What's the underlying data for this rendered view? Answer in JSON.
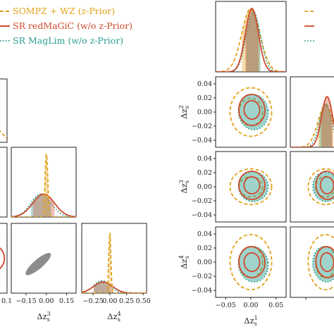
{
  "legend": {
    "entries": [
      {
        "label": "SOMPZ + WZ (z-Prior)",
        "color": "#e2a21a",
        "style": "dashed"
      },
      {
        "label": "SR redMaGiC (w/o z-Prior)",
        "color": "#cf4a2c",
        "style": "solid"
      },
      {
        "label": "SR MagLim (w/o z-Prior)",
        "color": "#2a9d8f",
        "style": "dotted"
      }
    ]
  },
  "chart_data": [
    {
      "type": "corner",
      "panel": "left",
      "parameters": [
        "Δz_s^3",
        "Δz_s^4"
      ],
      "axis_labels": {
        "x": [
          "Δz_s^3",
          "Δz_s^4"
        ]
      },
      "x_ticks": {
        "Δz_s^3": [
          "−0.15",
          "0.00",
          "0.15"
        ],
        "Δz_s^4": [
          "−0.25",
          "0.00",
          "0.25",
          "0.50"
        ]
      },
      "edge_tick_partial": [
        "0.1"
      ],
      "ranges": {
        "Δz_s^3": [
          -0.26,
          0.22
        ],
        "Δz_s^4": [
          -0.42,
          0.55
        ]
      },
      "series": [
        {
          "name": "SOMPZ + WZ (z-Prior)",
          "color": "#e2a21a",
          "mean": {
            "Δz_s^3": 0.0,
            "Δz_s^4": 0.0
          },
          "sigma": {
            "Δz_s^3": 0.01,
            "Δz_s^4": 0.015
          }
        },
        {
          "name": "SR redMaGiC (w/o z-Prior)",
          "color": "#cf4a2c",
          "mean": {
            "Δz_s^3": -0.02,
            "Δz_s^4": -0.1
          },
          "sigma": {
            "Δz_s^3": 0.08,
            "Δz_s^4": 0.14
          }
        },
        {
          "name": "SR MagLim (w/o z-Prior)",
          "color": "#2a9d8f",
          "mean": {
            "Δz_s^3": -0.04,
            "Δz_s^4": -0.12
          },
          "sigma": {
            "Δz_s^3": 0.075,
            "Δz_s^4": 0.12
          }
        }
      ]
    },
    {
      "type": "corner",
      "panel": "right",
      "parameters": [
        "Δz_s^1",
        "Δz_s^2",
        "Δz_s^3",
        "Δz_s^4"
      ],
      "axis_labels": {
        "x": [
          "Δz_s^1"
        ],
        "y": [
          "Δz_s^2",
          "Δz_s^3",
          "Δz_s^4"
        ]
      },
      "x_ticks": {
        "Δz_s^1": [
          "−0.05",
          "0.00",
          "0.05"
        ]
      },
      "y_ticks": [
        "0.04",
        "0.02",
        "0.00",
        "−0.02",
        "−0.04"
      ],
      "ranges": {
        "Δz_s^1": [
          -0.07,
          0.07
        ],
        "y": [
          -0.05,
          0.05
        ]
      },
      "series": [
        {
          "name": "SOMPZ + WZ (z-Prior)",
          "color": "#e2a21a",
          "mean": {
            "Δz_s^1": 0.0,
            "Δz_s^2": 0.0,
            "Δz_s^3": 0.0,
            "Δz_s^4": 0.0
          },
          "sigma": {
            "Δz_s^1": 0.018,
            "Δz_s^2": 0.015,
            "Δz_s^3": 0.011,
            "Δz_s^4": 0.017
          }
        },
        {
          "name": "SR redMaGiC (w/o z-Prior)",
          "color": "#cf4a2c",
          "mean": {
            "Δz_s^1": 0.002,
            "Δz_s^2": 0.003,
            "Δz_s^3": 0.002,
            "Δz_s^4": 0.0
          },
          "sigma": {
            "Δz_s^1": 0.013,
            "Δz_s^2": 0.011,
            "Δz_s^3": 0.01,
            "Δz_s^4": 0.011
          }
        },
        {
          "name": "SR MagLim (w/o z-Prior)",
          "color": "#2a9d8f",
          "mean": {
            "Δz_s^1": 0.005,
            "Δz_s^2": 0.0,
            "Δz_s^3": 0.0,
            "Δz_s^4": -0.003
          },
          "sigma": {
            "Δz_s^1": 0.014,
            "Δz_s^2": 0.012,
            "Δz_s^3": 0.01,
            "Δz_s^4": 0.012
          }
        }
      ]
    }
  ]
}
